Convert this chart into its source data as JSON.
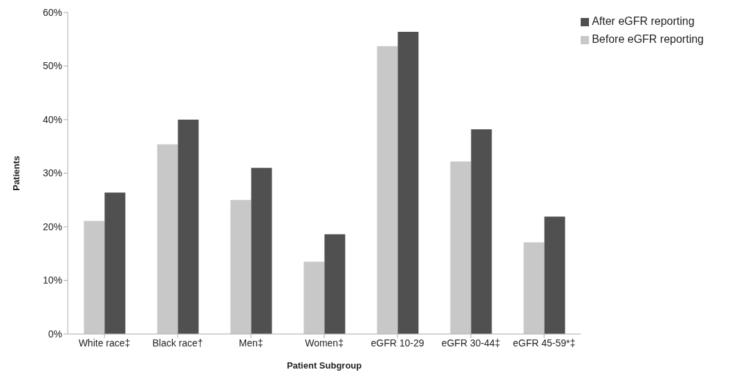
{
  "chart_data": {
    "type": "bar",
    "xlabel": "Patient Subgroup",
    "ylabel": "Patients",
    "categories": [
      "White race‡",
      "Black race†",
      "Men‡",
      "Women‡",
      "eGFR 10-29",
      "eGFR 30-44‡",
      "eGFR 45-59*‡"
    ],
    "series": [
      {
        "name": "Before eGFR reporting",
        "color": "#c8c8c8",
        "values": [
          21.1,
          35.4,
          25.0,
          13.5,
          53.7,
          32.2,
          17.1
        ]
      },
      {
        "name": "After eGFR reporting",
        "color": "#505050",
        "values": [
          26.4,
          40.0,
          31.0,
          18.6,
          56.4,
          38.2,
          21.9
        ]
      }
    ],
    "ylim": [
      0,
      60
    ],
    "yticks": [
      {
        "value": 0,
        "label": "0%"
      },
      {
        "value": 10,
        "label": "10%"
      },
      {
        "value": 20,
        "label": "20%"
      },
      {
        "value": 30,
        "label": "30%"
      },
      {
        "value": 40,
        "label": "40%"
      },
      {
        "value": 50,
        "label": "50%"
      },
      {
        "value": 60,
        "label": "60%"
      }
    ],
    "grid": false,
    "legend": "top right"
  }
}
